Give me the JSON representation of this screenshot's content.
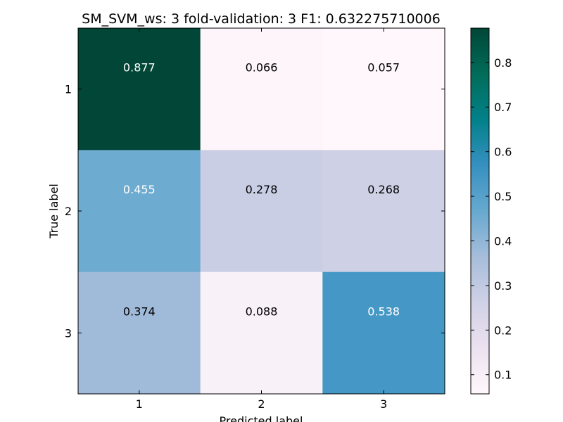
{
  "chart_data": {
    "type": "heatmap",
    "title": "SM_SVM_ws: 3 fold-validation: 3 F1: 0.632275710006",
    "xlabel": "Predicted label",
    "ylabel": "True label",
    "x_categories": [
      "1",
      "2",
      "3"
    ],
    "y_categories": [
      "1",
      "2",
      "3"
    ],
    "values": [
      [
        0.877,
        0.066,
        0.057
      ],
      [
        0.455,
        0.278,
        0.268
      ],
      [
        0.374,
        0.088,
        0.538
      ]
    ],
    "value_labels": [
      [
        "0.877",
        "0.066",
        "0.057"
      ],
      [
        "0.455",
        "0.278",
        "0.268"
      ],
      [
        "0.374",
        "0.088",
        "0.538"
      ]
    ],
    "colorbar": {
      "range": [
        0.057,
        0.877
      ],
      "ticks": [
        0.1,
        0.2,
        0.3,
        0.4,
        0.5,
        0.6,
        0.7,
        0.8
      ],
      "tick_labels": [
        "0.1",
        "0.2",
        "0.3",
        "0.4",
        "0.5",
        "0.6",
        "0.7",
        "0.8"
      ]
    },
    "colormap": "PuBuGn",
    "colormap_stops": [
      "#fff7fb",
      "#ece2f0",
      "#d0d1e6",
      "#a6bddb",
      "#67a9cf",
      "#3690c0",
      "#02818a",
      "#016c59",
      "#014636"
    ],
    "grid": false,
    "legend": "colorbar-right"
  }
}
